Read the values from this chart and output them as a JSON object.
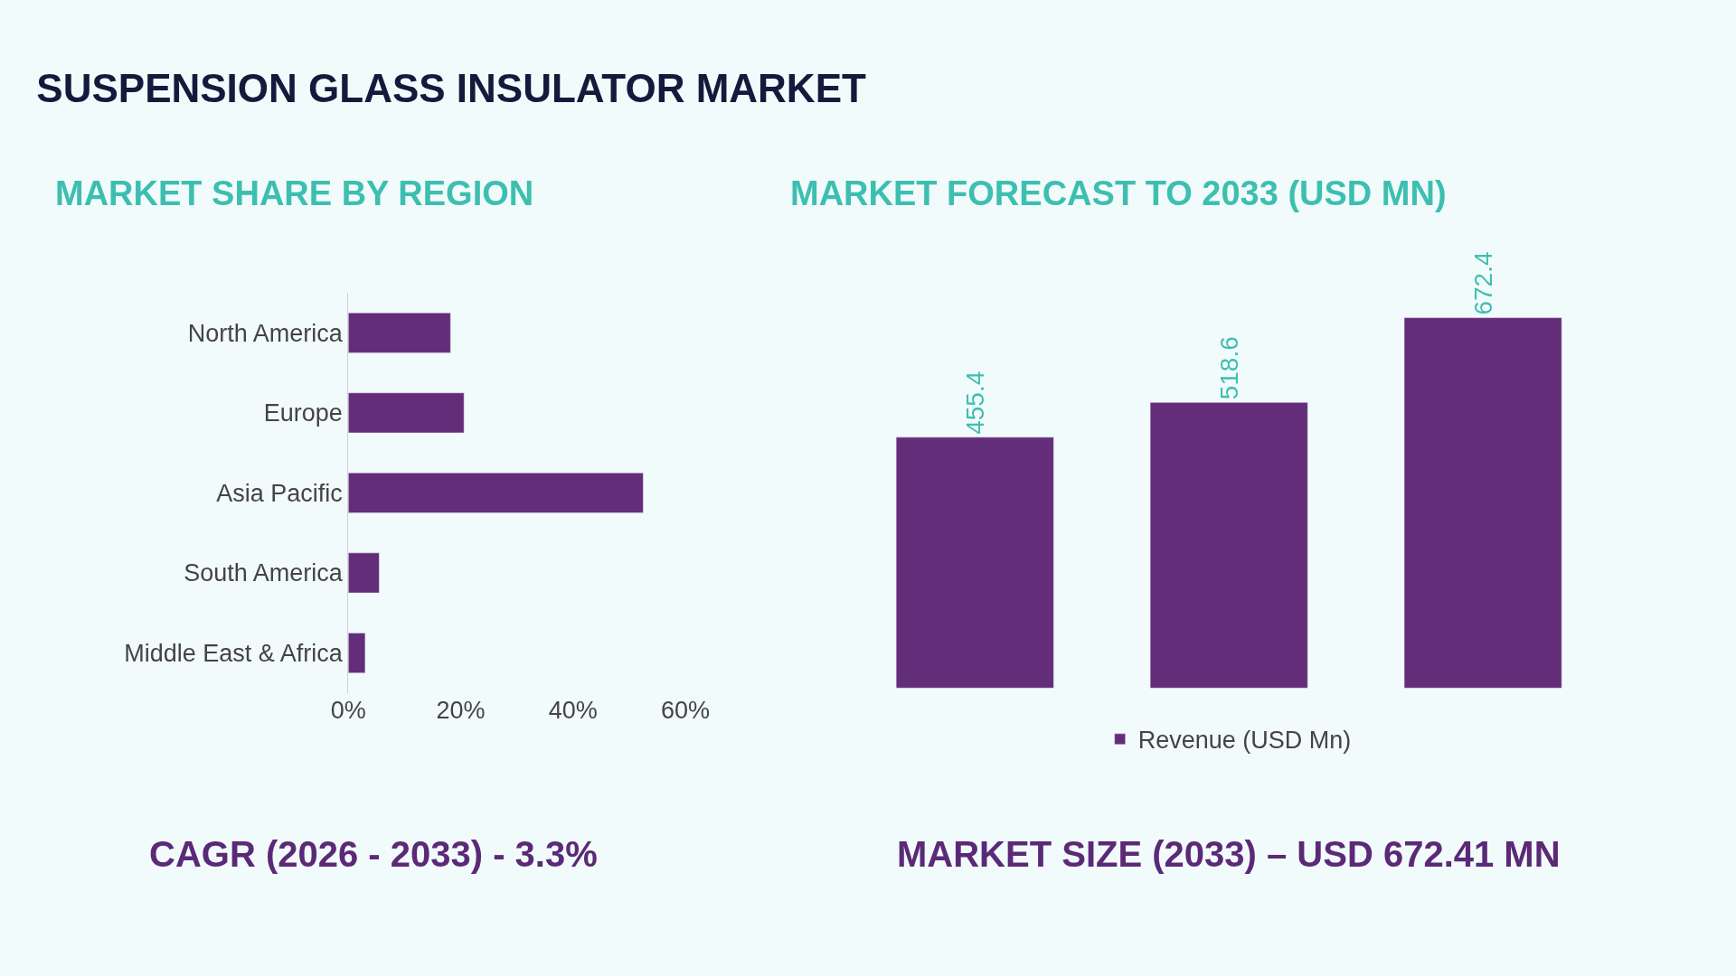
{
  "chart_data": [
    {
      "type": "bar",
      "title": "SUSPENSION GLASS INSULATOR MARKET",
      "subtitle": "MARKET SHARE BY REGION",
      "orientation": "horizontal",
      "categories": [
        "North America",
        "Europe",
        "Asia Pacific",
        "South America",
        "Middle East & Africa"
      ],
      "values": [
        18.2,
        20.6,
        52.5,
        5.5,
        3.0
      ],
      "color": "#632d79",
      "xlim": [
        0,
        60
      ],
      "xticks": [
        {
          "value": 0,
          "label": "0%"
        },
        {
          "value": 20,
          "label": "20%"
        },
        {
          "value": 40,
          "label": "40%"
        },
        {
          "value": 60,
          "label": "60%"
        }
      ],
      "legend": false,
      "annotations": [
        "CAGR (2026 - 2033) - 3.3%"
      ]
    },
    {
      "type": "bar",
      "title": "MARKET FORECAST TO 2033 (USD MN)",
      "categories": [
        null,
        null,
        null
      ],
      "series": [
        {
          "name": "Revenue (USD Mn)",
          "color": "#632d79",
          "values": [
            455.4,
            518.6,
            672.4
          ]
        }
      ],
      "data_labels": true,
      "legend": "bottom",
      "annotations": [
        "MARKET SIZE (2033) – USD 672.41 MN"
      ]
    }
  ]
}
